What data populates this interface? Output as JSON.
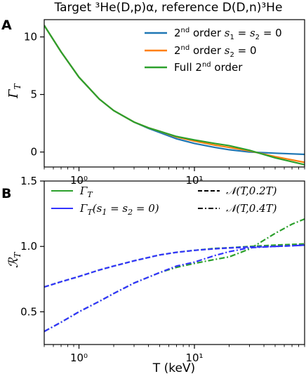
{
  "chart_data": [
    {
      "panel": "A",
      "type": "line",
      "title": "Target ³He(D,p)α, reference D(D,n)³He",
      "xlabel": "",
      "ylabel": "Γ_T",
      "xscale": "log",
      "xlim": [
        0.5,
        90
      ],
      "ylim": [
        -1.3,
        11.5
      ],
      "yticks": [
        0,
        5,
        10
      ],
      "xticks": [
        1,
        10
      ],
      "xtick_labels": [
        "10⁰",
        "10¹"
      ],
      "legend_position": "top-right",
      "series": [
        {
          "name": "2nd order s1 = s2 = 0",
          "color": "#1f77b4",
          "x": [
            0.5,
            0.7,
            1,
            1.5,
            2,
            3,
            4,
            5,
            7,
            10,
            15,
            20,
            30,
            50,
            90
          ],
          "y": [
            11.0,
            8.7,
            6.5,
            4.6,
            3.6,
            2.6,
            2.05,
            1.7,
            1.15,
            0.75,
            0.4,
            0.2,
            0.0,
            -0.1,
            -0.2
          ]
        },
        {
          "name": "2nd order s2 = 0",
          "color": "#ff7f0e",
          "x": [
            0.5,
            0.7,
            1,
            1.5,
            2,
            3,
            4,
            5,
            7,
            10,
            15,
            20,
            30,
            50,
            90
          ],
          "y": [
            11.0,
            8.7,
            6.5,
            4.6,
            3.6,
            2.6,
            2.1,
            1.8,
            1.3,
            0.95,
            0.6,
            0.4,
            0.1,
            -0.4,
            -0.9
          ]
        },
        {
          "name": "Full 2nd order",
          "color": "#2ca02c",
          "x": [
            0.5,
            0.7,
            1,
            1.5,
            2,
            3,
            4,
            5,
            7,
            10,
            15,
            20,
            30,
            50,
            90
          ],
          "y": [
            11.0,
            8.7,
            6.5,
            4.6,
            3.6,
            2.6,
            2.1,
            1.8,
            1.35,
            1.05,
            0.75,
            0.55,
            0.15,
            -0.5,
            -1.1
          ]
        }
      ]
    },
    {
      "panel": "B",
      "type": "line",
      "xlabel": "T (keV)",
      "ylabel": "R_T",
      "xscale": "log",
      "xlim": [
        0.5,
        90
      ],
      "ylim": [
        0.25,
        1.5
      ],
      "yticks": [
        0.5,
        1.0,
        1.5
      ],
      "ytick_labels": [
        "0.5",
        "1.0",
        "1.5"
      ],
      "xticks": [
        1,
        10
      ],
      "xtick_labels": [
        "10⁰",
        "10¹"
      ],
      "legend_position": "top",
      "series": [
        {
          "name": "Γ_T  𝒩(T,0.2T)",
          "color": "#2ca02c",
          "dash": "dash",
          "x": [
            0.5,
            0.7,
            1,
            1.5,
            2,
            3,
            5,
            7,
            10,
            15,
            20,
            30,
            50,
            70,
            90
          ],
          "y": [
            0.69,
            0.73,
            0.77,
            0.82,
            0.85,
            0.89,
            0.935,
            0.955,
            0.97,
            0.985,
            0.99,
            1.0,
            1.01,
            1.015,
            1.02
          ]
        },
        {
          "name": "Γ_T  𝒩(T,0.4T)",
          "color": "#2ca02c",
          "dash": "dashdot",
          "x": [
            0.5,
            0.7,
            1,
            1.5,
            2,
            3,
            5,
            7,
            10,
            15,
            20,
            30,
            50,
            70,
            90
          ],
          "y": [
            0.35,
            0.42,
            0.5,
            0.58,
            0.64,
            0.72,
            0.8,
            0.84,
            0.87,
            0.9,
            0.92,
            0.98,
            1.1,
            1.17,
            1.21
          ]
        },
        {
          "name": "Γ_T(s1 = s2 = 0)  𝒩(T,0.2T)",
          "color": "#3333ff",
          "dash": "dash",
          "x": [
            0.5,
            0.7,
            1,
            1.5,
            2,
            3,
            5,
            7,
            10,
            15,
            20,
            30,
            50,
            70,
            90
          ],
          "y": [
            0.69,
            0.73,
            0.77,
            0.82,
            0.85,
            0.89,
            0.935,
            0.955,
            0.97,
            0.982,
            0.988,
            0.995,
            1.0,
            1.005,
            1.01
          ]
        },
        {
          "name": "Γ_T(s1 = s2 = 0)  𝒩(T,0.4T)",
          "color": "#3333ff",
          "dash": "dashdot",
          "x": [
            0.5,
            0.7,
            1,
            1.5,
            2,
            3,
            5,
            7,
            10,
            15,
            20,
            30,
            50,
            70,
            90
          ],
          "y": [
            0.35,
            0.42,
            0.5,
            0.58,
            0.64,
            0.72,
            0.8,
            0.85,
            0.88,
            0.93,
            0.96,
            0.99,
            1.0,
            1.005,
            1.01
          ]
        }
      ],
      "legend": [
        {
          "label": "Γ_T",
          "color": "#2ca02c",
          "style": "solid"
        },
        {
          "label": "Γ_T(s1 = s2 = 0)",
          "color": "#3333ff",
          "style": "solid"
        },
        {
          "label": "𝒩(T,0.2T)",
          "color": "#000000",
          "style": "dash"
        },
        {
          "label": "𝒩(T,0.4T)",
          "color": "#000000",
          "style": "dashdot"
        }
      ]
    }
  ],
  "labels": {
    "panel_a": "A",
    "panel_b": "B",
    "title": "Target ³He(D,p)α, reference D(D,n)³He",
    "ylabel_a": "Γ",
    "ylabel_a_sub": "T",
    "ylabel_b": "ℛ",
    "ylabel_b_sub": "T",
    "xlabel_b": "T (keV)"
  }
}
